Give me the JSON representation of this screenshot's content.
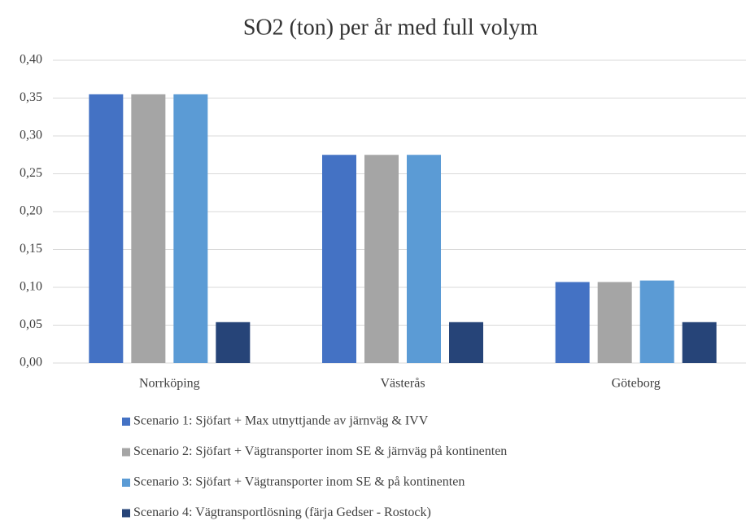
{
  "chart_data": {
    "type": "bar",
    "title": "SO2 (ton) per år med full volym",
    "categories": [
      "Norrköping",
      "Västerås",
      "Göteborg"
    ],
    "series": [
      {
        "name": "Scenario 1: Sjöfart + Max utnyttjande av järnväg & IVV",
        "color": "#4472c4",
        "values": [
          0.355,
          0.275,
          0.107
        ]
      },
      {
        "name": "Scenario 2: Sjöfart + Vägtransporter inom SE & järnväg på kontinenten",
        "color": "#a5a5a5",
        "values": [
          0.355,
          0.275,
          0.107
        ]
      },
      {
        "name": "Scenario 3: Sjöfart + Vägtransporter inom SE & på kontinenten",
        "color": "#5b9bd5",
        "values": [
          0.355,
          0.275,
          0.109
        ]
      },
      {
        "name": "Scenario 4: Vägtransportlösning (färja Gedser - Rostock)",
        "color": "#264478",
        "values": [
          0.054,
          0.054,
          0.054
        ]
      }
    ],
    "ylim": [
      0,
      0.4
    ],
    "yticks": [
      {
        "value": 0,
        "label": "0,00"
      },
      {
        "value": 0.05,
        "label": "0,05"
      },
      {
        "value": 0.1,
        "label": "0,10"
      },
      {
        "value": 0.15,
        "label": "0,15"
      },
      {
        "value": 0.2,
        "label": "0,20"
      },
      {
        "value": 0.25,
        "label": "0,25"
      },
      {
        "value": 0.3,
        "label": "0,30"
      },
      {
        "value": 0.35,
        "label": "0,35"
      },
      {
        "value": 0.4,
        "label": "0,40"
      }
    ],
    "grid": true,
    "legend": "bottom"
  }
}
